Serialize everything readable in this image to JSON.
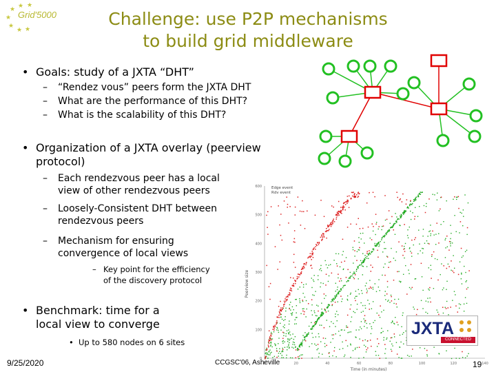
{
  "logo": {
    "text": "Grid'5000",
    "icon": "star-ring-icon",
    "color": "#b8b830"
  },
  "title": {
    "line1": "Challenge: use P2P mechanisms",
    "line2": "to build grid middleware",
    "color": "#8c8c14"
  },
  "bullets": [
    {
      "text": "Goals: study of a JXTA “DHT”",
      "subs": [
        "“Rendez vous” peers form the JXTA DHT",
        "What are the performance of this DHT?",
        "What is the scalability of this DHT?"
      ]
    },
    {
      "text_line1": "Organization of a JXTA overlay (peerview",
      "text_line2": "protocol)",
      "subs": [
        {
          "line1": "Each rendezvous peer has a local",
          "line2": "view of other rendezvous peers"
        },
        {
          "line1": "Loosely-Consistent DHT between",
          "line2": "rendezvous peers"
        },
        {
          "line1": "Mechanism for ensuring",
          "line2": "convergence of local views"
        }
      ],
      "subsub": {
        "line1": "Key point for the efficiency",
        "line2": "of the discovery protocol"
      }
    },
    {
      "text_line1": "Benchmark: time for a",
      "text_line2": "local view to converge",
      "subsub": "Up to 580 nodes on 6 sites"
    }
  ],
  "diagram": {
    "rendezvous_color": "#e00000",
    "edge_peer_color": "#22c022"
  },
  "chart_data": {
    "type": "scatter",
    "title": "",
    "xlabel": "Time (in minutes)",
    "ylabel": "Peerview size",
    "x_ticks": [
      "0",
      "20",
      "40",
      "60",
      "80",
      "100",
      "120",
      "140"
    ],
    "y_ticks": [
      "0",
      "100",
      "200",
      "300",
      "400",
      "500",
      "600"
    ],
    "xlim": [
      0,
      140
    ],
    "ylim": [
      0,
      600
    ],
    "legend": [
      "Edge event",
      "Rdv event"
    ],
    "series": [
      {
        "name": "Edge event",
        "color": "#22aa22",
        "description": "points spanning from near 0 to ~580, rising curve reaching top at ~100 min"
      },
      {
        "name": "Rdv event",
        "color": "#dd2222",
        "description": "scattered points, lower envelope rising to ~580 by ~55 min"
      }
    ]
  },
  "jxta_logo": {
    "word": "JXTA",
    "tag": "CONNECTED",
    "brand_color": "#1a2a7a",
    "tag_color": "#c8102e"
  },
  "footer": {
    "date": "9/25/2020",
    "conference": "CCGSC'06, Asheville",
    "page": "19"
  }
}
